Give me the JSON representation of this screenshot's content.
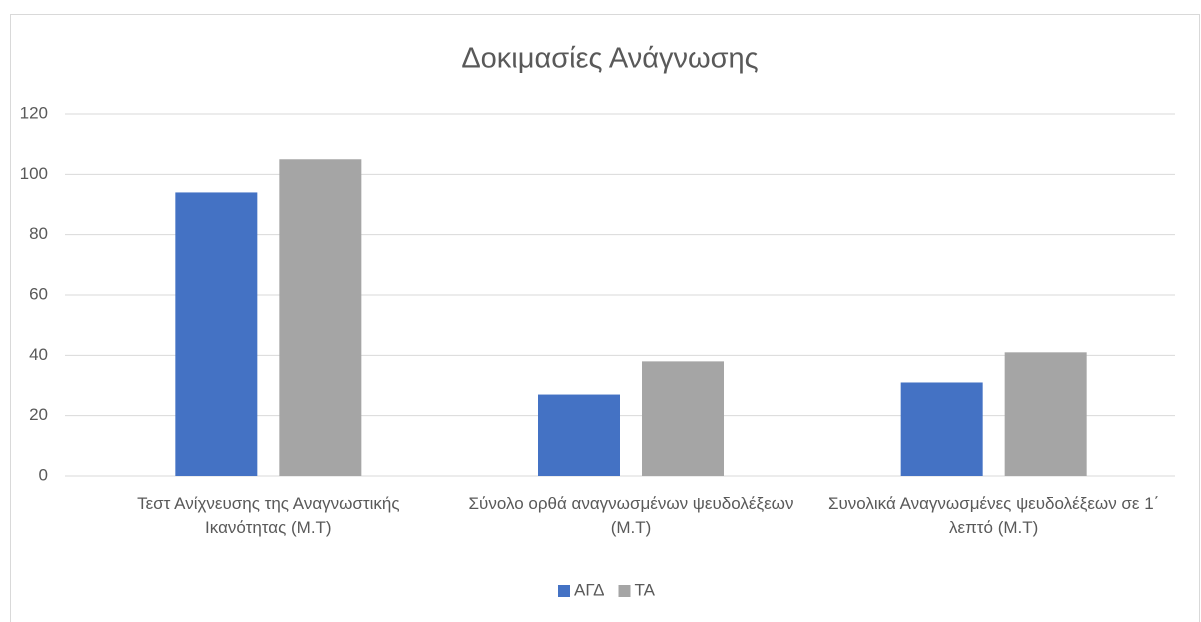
{
  "chart_data": {
    "type": "bar",
    "title": "Δοκιμασίες Ανάγνωσης",
    "categories": [
      "Τεστ Ανίχνευσης της Αναγνωστικής Ικανότητας (Μ.Τ)",
      "Σύνολο ορθά αναγνωσμένων ψευδολέξεων (Μ.Τ)",
      "Συνολικά Αναγνωσμένες ψευδολέξεων σε 1΄ λεπτό (Μ.Τ)"
    ],
    "series": [
      {
        "name": "ΑΓΔ",
        "color": "#4472c4",
        "values": [
          94,
          27,
          31
        ]
      },
      {
        "name": "ΤΑ",
        "color": "#a5a5a5",
        "values": [
          105,
          38,
          41
        ]
      }
    ],
    "ylim": [
      0,
      120
    ],
    "yticks": [
      0,
      20,
      40,
      60,
      80,
      100,
      120
    ],
    "grid": true,
    "legend": "bottom"
  }
}
